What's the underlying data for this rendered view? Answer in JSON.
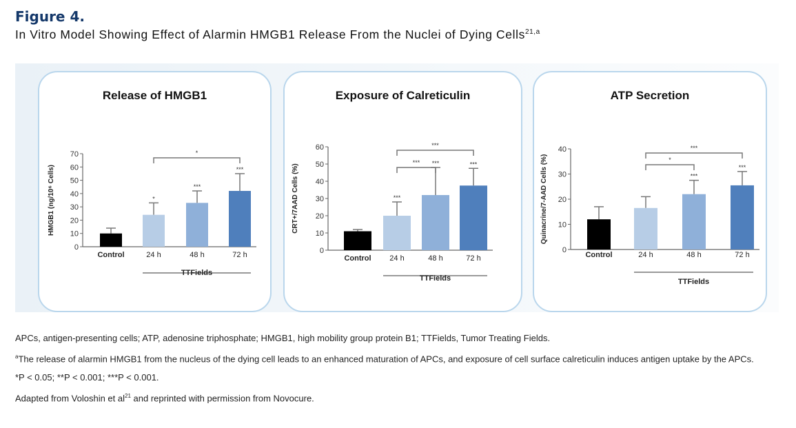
{
  "figure_label": "Figure 4.",
  "figure_title": "In Vitro Model Showing Effect of Alarmin HMGB1 Release From the Nuclei of Dying Cells",
  "figure_title_sup": "21,a",
  "chart_data": [
    {
      "type": "bar",
      "title": "Release of HMGB1",
      "ylabel": "HMGB1 (ng/10⁶ Cells)",
      "xlabel": "TTFields",
      "ylim": [
        0,
        70
      ],
      "yticks": [
        0,
        10,
        20,
        30,
        40,
        50,
        60,
        70
      ],
      "categories": [
        "Control",
        "24 h",
        "48 h",
        "72 h"
      ],
      "values": [
        10,
        24,
        33,
        42
      ],
      "error_upper": [
        14,
        33,
        42,
        55
      ],
      "annotations": [
        "",
        "*",
        "***",
        "***"
      ],
      "brackets": [
        {
          "from": "24 h",
          "to": "72 h",
          "label": "*"
        }
      ],
      "colors": [
        "#000000",
        "#b7cde6",
        "#8fb0d9",
        "#4f7fbc"
      ]
    },
    {
      "type": "bar",
      "title": "Exposure of Calreticulin",
      "ylabel": "CRT+/7AAD Cells (%)",
      "xlabel": "TTFields",
      "ylim": [
        0,
        60
      ],
      "yticks": [
        0,
        10,
        20,
        30,
        40,
        50,
        60
      ],
      "categories": [
        "Control",
        "24 h",
        "48 h",
        "72 h"
      ],
      "values": [
        11,
        20,
        32,
        37.5
      ],
      "error_upper": [
        12,
        28,
        48,
        47.5
      ],
      "annotations": [
        "",
        "***",
        "***",
        "***"
      ],
      "brackets": [
        {
          "from": "24 h",
          "to": "48 h",
          "label": "***"
        },
        {
          "from": "24 h",
          "to": "72 h",
          "label": "***"
        }
      ],
      "colors": [
        "#000000",
        "#b7cde6",
        "#8fb0d9",
        "#4f7fbc"
      ]
    },
    {
      "type": "bar",
      "title": "ATP Secretion",
      "ylabel": "Quinacrine/7-AAD Cells (%)",
      "xlabel": "TTFields",
      "ylim": [
        0,
        40
      ],
      "yticks": [
        0,
        10,
        20,
        30,
        40
      ],
      "categories": [
        "Control",
        "24 h",
        "48 h",
        "72 h"
      ],
      "values": [
        12,
        16.5,
        22,
        25.5
      ],
      "error_upper": [
        17,
        21,
        27.5,
        31
      ],
      "annotations": [
        "",
        "",
        "***",
        "***"
      ],
      "brackets": [
        {
          "from": "24 h",
          "to": "48 h",
          "label": "*"
        },
        {
          "from": "24 h",
          "to": "72 h",
          "label": "***"
        }
      ],
      "colors": [
        "#000000",
        "#b7cde6",
        "#8fb0d9",
        "#4f7fbc"
      ]
    }
  ],
  "notes": {
    "abbrev": "APCs, antigen-presenting cells; ATP, adenosine triphosphate; HMGB1, high mobility group protein B1; TTFields, Tumor Treating Fields.",
    "footnote_a_mark": "a",
    "footnote_a": "The release of alarmin HMGB1 from the nucleus of the dying cell leads to an enhanced maturation of APCs, and exposure of cell surface calreticulin induces antigen uptake by the APCs.",
    "pvalues": "*P < 0.05; **P < 0.001; ***P < 0.001.",
    "adapted_pre": "Adapted from Voloshin et al",
    "adapted_sup": "21",
    "adapted_post": " and reprinted with permission from Novocure."
  }
}
